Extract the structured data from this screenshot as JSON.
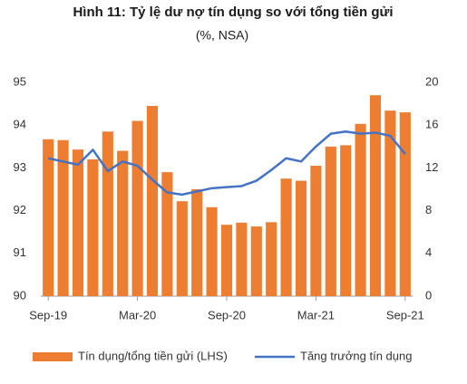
{
  "chart_data": {
    "type": "bar",
    "title": "Hình 11: Tỷ lệ dư nợ tín dụng so với tổng tiền gửi",
    "subtitle": "(%, NSA)",
    "categories": [
      "Sep-19",
      null,
      null,
      null,
      null,
      null,
      "Mar-20",
      null,
      null,
      null,
      null,
      null,
      "Sep-20",
      null,
      null,
      null,
      null,
      null,
      "Mar-21",
      null,
      null,
      null,
      null,
      null,
      "Sep-21"
    ],
    "series": [
      {
        "name": "Tín dụng/tổng tiền gửi (LHS)",
        "type": "bar",
        "color": "#ed7d31",
        "values": [
          93.67,
          93.65,
          93.43,
          93.2,
          93.85,
          93.4,
          94.1,
          94.45,
          92.9,
          92.22,
          92.5,
          92.08,
          91.67,
          91.72,
          91.63,
          91.73,
          92.75,
          92.7,
          93.05,
          93.5,
          93.53,
          94.03,
          94.7,
          94.34,
          94.3
        ]
      },
      {
        "name": "Tăng trưởng tín dụng",
        "type": "line",
        "axis": "y2",
        "color": "#4472c4",
        "values": [
          12.9,
          12.6,
          12.3,
          13.7,
          11.7,
          12.6,
          12.2,
          10.9,
          9.7,
          9.5,
          9.8,
          10.1,
          10.2,
          10.3,
          10.8,
          11.8,
          12.9,
          12.6,
          14.0,
          15.2,
          15.4,
          15.2,
          15.3,
          15.0,
          13.3
        ]
      }
    ],
    "ylim": [
      90,
      95
    ],
    "yticks": [
      90,
      91,
      92,
      93,
      94,
      95
    ],
    "y2lim": [
      0,
      20
    ],
    "y2ticks": [
      0,
      4,
      8,
      12,
      16,
      20
    ],
    "grid": false
  }
}
